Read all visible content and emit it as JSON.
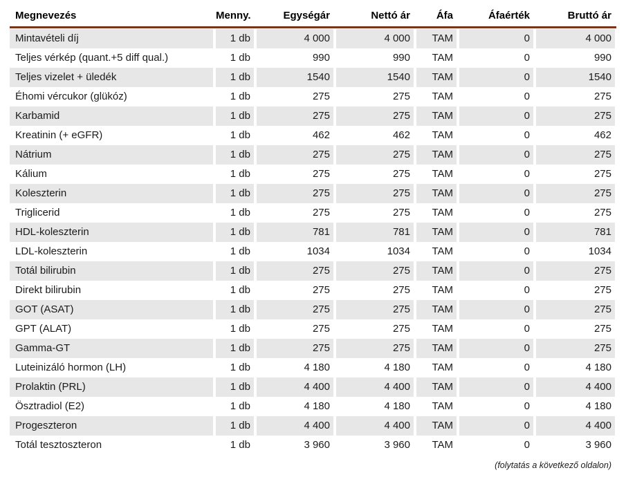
{
  "table": {
    "columns": [
      {
        "key": "name",
        "label": "Megnevezés"
      },
      {
        "key": "qty",
        "label": "Menny."
      },
      {
        "key": "unit_price",
        "label": "Egységár"
      },
      {
        "key": "net_price",
        "label": "Nettó ár"
      },
      {
        "key": "vat",
        "label": "Áfa"
      },
      {
        "key": "vat_value",
        "label": "Áfaérték"
      },
      {
        "key": "gross_price",
        "label": "Bruttó ár"
      }
    ],
    "rows": [
      {
        "name": "Mintavételi díj",
        "qty": "1 db",
        "unit_price": "4 000",
        "net_price": "4 000",
        "vat": "TAM",
        "vat_value": "0",
        "gross_price": "4 000"
      },
      {
        "name": "Teljes vérkép (quant.+5 diff qual.)",
        "qty": "1 db",
        "unit_price": "990",
        "net_price": "990",
        "vat": "TAM",
        "vat_value": "0",
        "gross_price": "990"
      },
      {
        "name": "Teljes vizelet + üledék",
        "qty": "1 db",
        "unit_price": "1540",
        "net_price": "1540",
        "vat": "TAM",
        "vat_value": "0",
        "gross_price": "1540"
      },
      {
        "name": "Éhomi vércukor (glükóz)",
        "qty": "1 db",
        "unit_price": "275",
        "net_price": "275",
        "vat": "TAM",
        "vat_value": "0",
        "gross_price": "275"
      },
      {
        "name": "Karbamid",
        "qty": "1 db",
        "unit_price": "275",
        "net_price": "275",
        "vat": "TAM",
        "vat_value": "0",
        "gross_price": "275"
      },
      {
        "name": "Kreatinin (+ eGFR)",
        "qty": "1 db",
        "unit_price": "462",
        "net_price": "462",
        "vat": "TAM",
        "vat_value": "0",
        "gross_price": "462"
      },
      {
        "name": "Nátrium",
        "qty": "1 db",
        "unit_price": "275",
        "net_price": "275",
        "vat": "TAM",
        "vat_value": "0",
        "gross_price": "275"
      },
      {
        "name": "Kálium",
        "qty": "1 db",
        "unit_price": "275",
        "net_price": "275",
        "vat": "TAM",
        "vat_value": "0",
        "gross_price": "275"
      },
      {
        "name": "Koleszterin",
        "qty": "1 db",
        "unit_price": "275",
        "net_price": "275",
        "vat": "TAM",
        "vat_value": "0",
        "gross_price": "275"
      },
      {
        "name": "Triglicerid",
        "qty": "1 db",
        "unit_price": "275",
        "net_price": "275",
        "vat": "TAM",
        "vat_value": "0",
        "gross_price": "275"
      },
      {
        "name": "HDL-koleszterin",
        "qty": "1 db",
        "unit_price": "781",
        "net_price": "781",
        "vat": "TAM",
        "vat_value": "0",
        "gross_price": "781"
      },
      {
        "name": "LDL-koleszterin",
        "qty": "1 db",
        "unit_price": "1034",
        "net_price": "1034",
        "vat": "TAM",
        "vat_value": "0",
        "gross_price": "1034"
      },
      {
        "name": "Totál bilirubin",
        "qty": "1 db",
        "unit_price": "275",
        "net_price": "275",
        "vat": "TAM",
        "vat_value": "0",
        "gross_price": "275"
      },
      {
        "name": "Direkt bilirubin",
        "qty": "1 db",
        "unit_price": "275",
        "net_price": "275",
        "vat": "TAM",
        "vat_value": "0",
        "gross_price": "275"
      },
      {
        "name": "GOT (ASAT)",
        "qty": "1 db",
        "unit_price": "275",
        "net_price": "275",
        "vat": "TAM",
        "vat_value": "0",
        "gross_price": "275"
      },
      {
        "name": "GPT (ALAT)",
        "qty": "1 db",
        "unit_price": "275",
        "net_price": "275",
        "vat": "TAM",
        "vat_value": "0",
        "gross_price": "275"
      },
      {
        "name": "Gamma-GT",
        "qty": "1 db",
        "unit_price": "275",
        "net_price": "275",
        "vat": "TAM",
        "vat_value": "0",
        "gross_price": "275"
      },
      {
        "name": "Luteinizáló hormon (LH)",
        "qty": "1 db",
        "unit_price": "4 180",
        "net_price": "4 180",
        "vat": "TAM",
        "vat_value": "0",
        "gross_price": "4 180"
      },
      {
        "name": "Prolaktin (PRL)",
        "qty": "1 db",
        "unit_price": "4 400",
        "net_price": "4 400",
        "vat": "TAM",
        "vat_value": "0",
        "gross_price": "4 400"
      },
      {
        "name": "Ösztradiol (E2)",
        "qty": "1 db",
        "unit_price": "4 180",
        "net_price": "4 180",
        "vat": "TAM",
        "vat_value": "0",
        "gross_price": "4 180"
      },
      {
        "name": "Progeszteron",
        "qty": "1 db",
        "unit_price": "4 400",
        "net_price": "4 400",
        "vat": "TAM",
        "vat_value": "0",
        "gross_price": "4 400"
      },
      {
        "name": "Totál tesztoszteron",
        "qty": "1 db",
        "unit_price": "3 960",
        "net_price": "3 960",
        "vat": "TAM",
        "vat_value": "0",
        "gross_price": "3 960"
      }
    ]
  },
  "footer": {
    "note": "(folytatás a következő oldalon)"
  },
  "colors": {
    "header_rule": "#7c331c",
    "row_stripe": "#e7e7e7",
    "text": "#1b1b1b"
  }
}
